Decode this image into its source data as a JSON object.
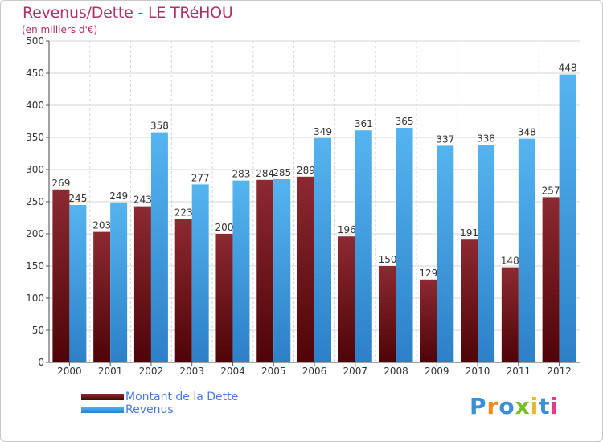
{
  "header": {
    "title": "Revenus/Dette - LE TRéHOU",
    "subtitle": "(en milliers d'€)"
  },
  "colors": {
    "title": "#b0306a",
    "dette": "#6b0a10",
    "revenus": "#3a98df",
    "legend_text": "#4a78e0",
    "grid": "#d4d4d4"
  },
  "chart_data": {
    "type": "bar",
    "title": "Revenus/Dette - LE TRéHOU",
    "subtitle": "(en milliers d'€)",
    "xlabel": "",
    "ylabel": "",
    "ylim": [
      0,
      500
    ],
    "yticks": [
      0,
      50,
      100,
      150,
      200,
      250,
      300,
      350,
      400,
      450,
      500
    ],
    "grid": true,
    "legend_position": "bottom-left",
    "categories": [
      "2000",
      "2001",
      "2002",
      "2003",
      "2004",
      "2005",
      "2006",
      "2007",
      "2008",
      "2009",
      "2010",
      "2011",
      "2012"
    ],
    "series": [
      {
        "name": "Montant de la Dette",
        "color": "#6b0a10",
        "values": [
          269,
          203,
          243,
          223,
          200,
          284,
          289,
          196,
          150,
          129,
          191,
          148,
          257
        ]
      },
      {
        "name": "Revenus",
        "color": "#3a98df",
        "values": [
          245,
          249,
          358,
          277,
          283,
          285,
          349,
          361,
          365,
          337,
          338,
          348,
          448
        ]
      }
    ]
  },
  "legend": {
    "items": [
      {
        "label": "Montant de la Dette",
        "color": "#6b0a10"
      },
      {
        "label": "Revenus",
        "color": "#3a98df"
      }
    ]
  },
  "brand": {
    "letters": [
      {
        "ch": "P",
        "color": "#3c8fd6"
      },
      {
        "ch": "r",
        "color": "#f08a1c"
      },
      {
        "ch": "o",
        "color": "#3c8fd6"
      },
      {
        "ch": "x",
        "color": "#7cbb2a"
      },
      {
        "ch": "i",
        "color": "#e8b82a"
      },
      {
        "ch": "t",
        "color": "#3c8fd6"
      },
      {
        "ch": "i",
        "color": "#e03c8a"
      }
    ]
  }
}
